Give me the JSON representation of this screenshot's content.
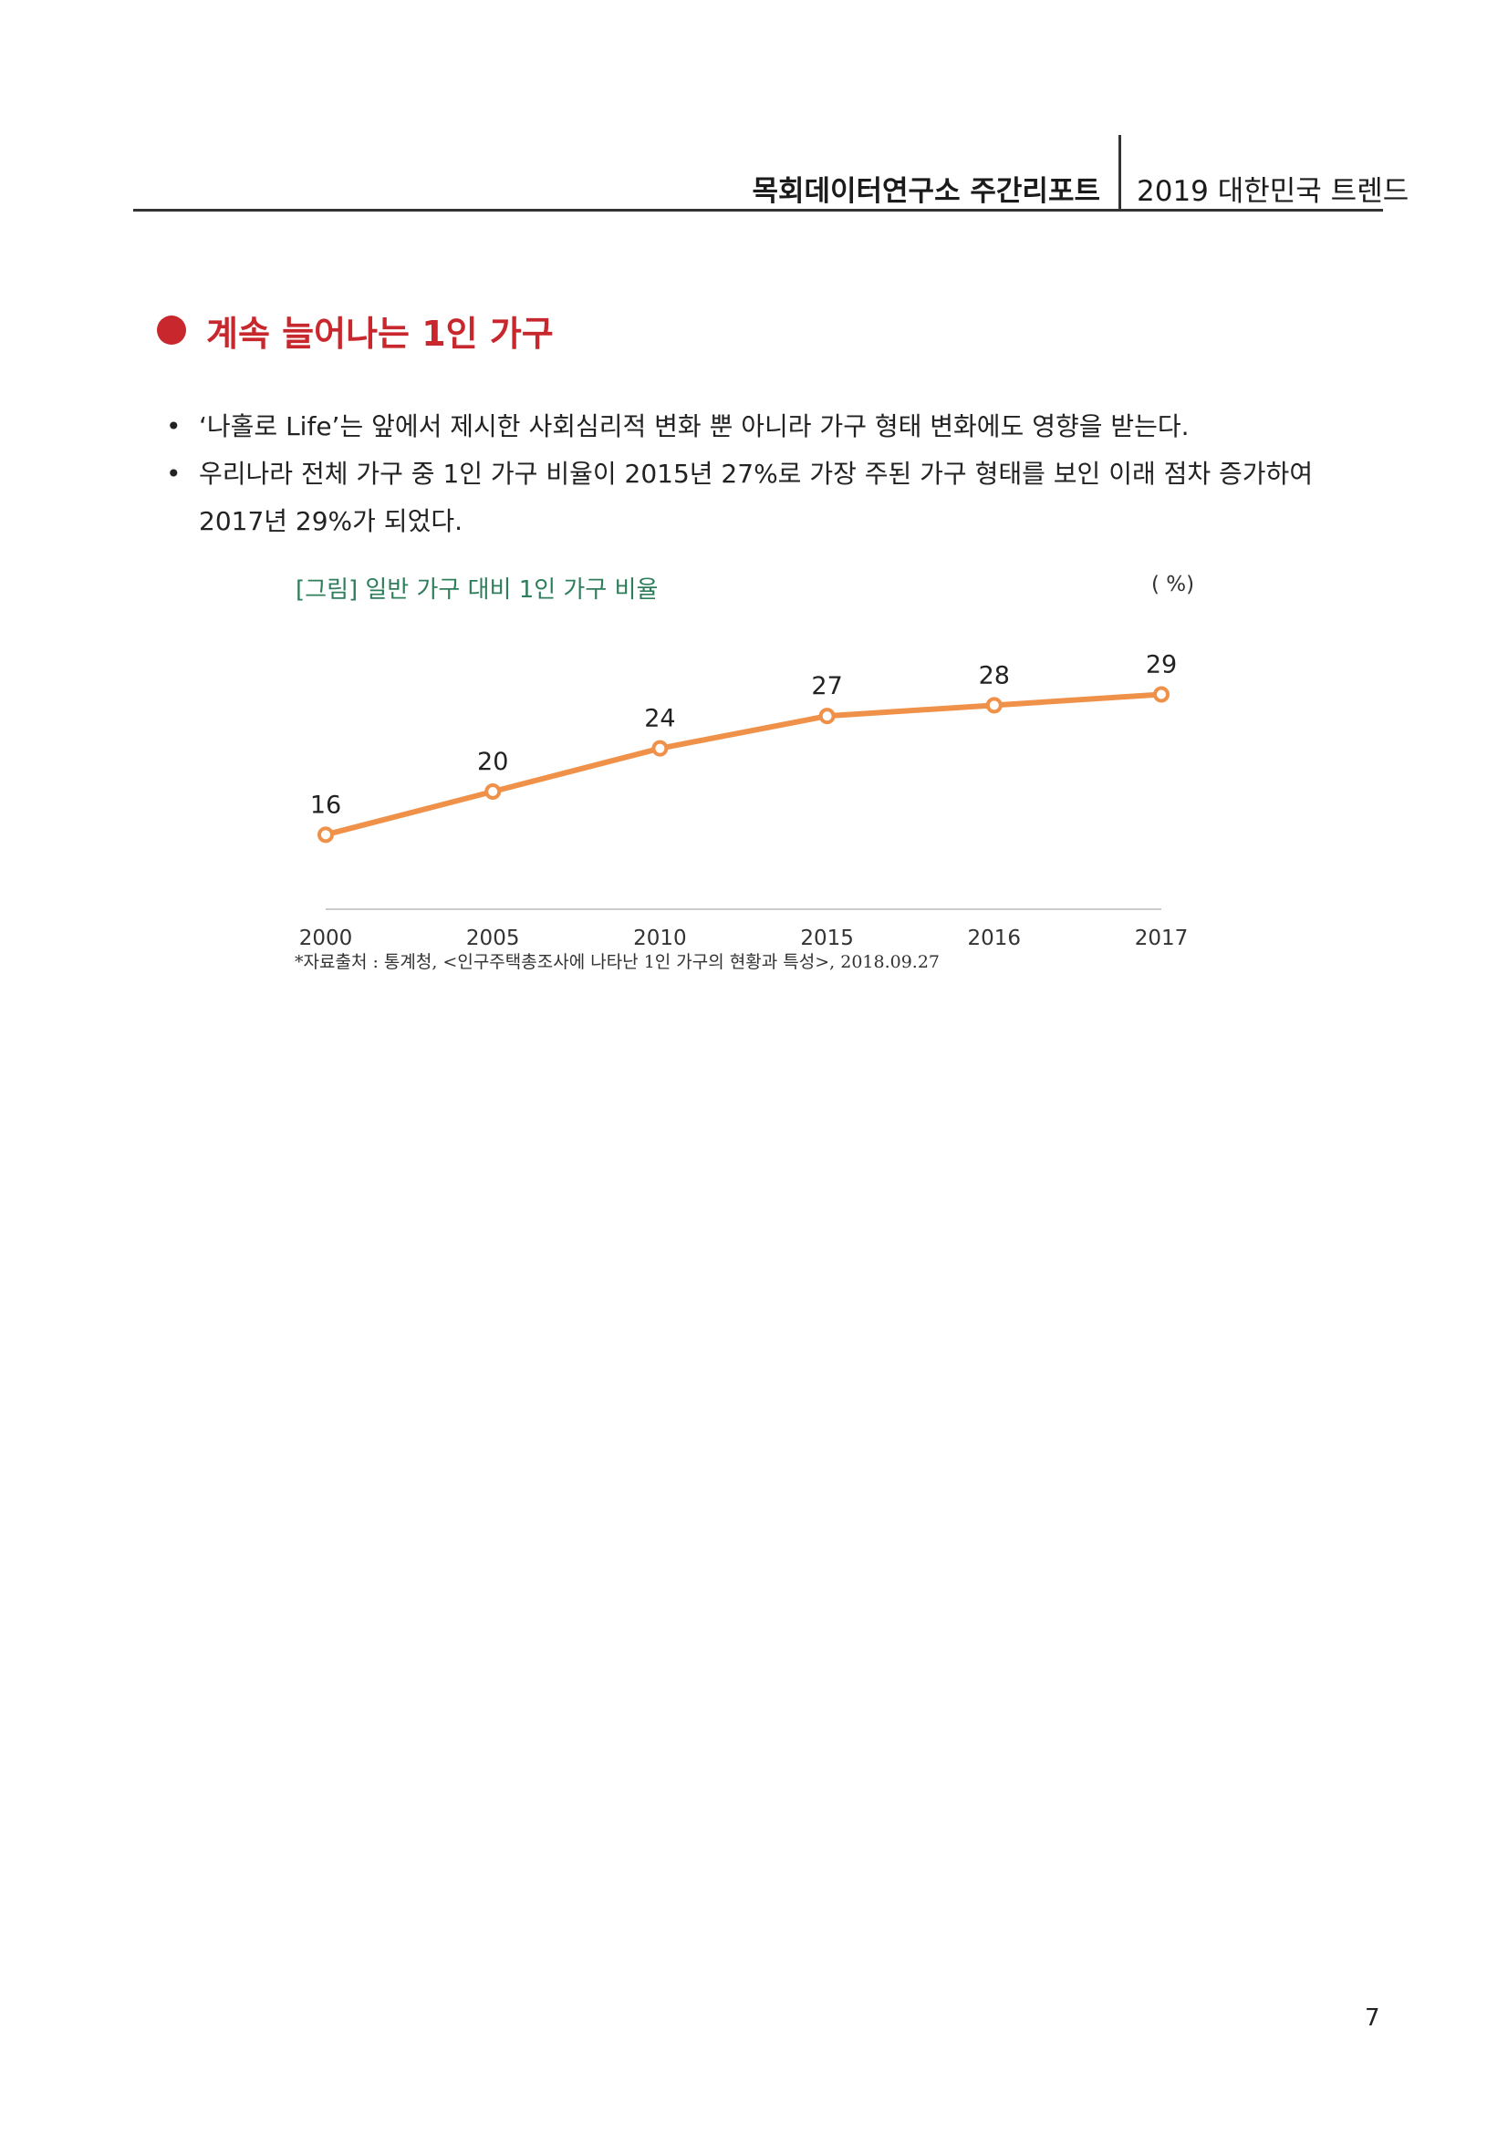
{
  "header": {
    "org": "목회데이터연구소 주간리포트",
    "series": "2019 대한민국 트렌드"
  },
  "section": {
    "title": "계속 늘어나는 1인 가구"
  },
  "bullets": [
    {
      "mark": "•",
      "lines": [
        "‘나홀로 Life’는 앞에서 제시한 사회심리적 변화 뿐 아니라 가구 형태 변화에도 영향을 받는다."
      ]
    },
    {
      "mark": "•",
      "lines": [
        "우리나라 전체 가구 중 1인 가구 비율이 2015년 27%로 가장 주된 가구 형태를 보인 이래 점차 증가하여",
        "2017년 29%가 되었다."
      ]
    }
  ],
  "figure": {
    "caption": "[그림] 일반 가구 대비 1인 가구 비율",
    "unit": "( %)",
    "source": "*자료출처 : 통계청, <인구주택총조사에 나타난 1인 가구의 현황과 특성>, 2018.09.27"
  },
  "chart_data": {
    "type": "line",
    "categories": [
      "2000",
      "2005",
      "2010",
      "2015",
      "2016",
      "2017"
    ],
    "series": [
      {
        "values": [
          16,
          20,
          24,
          27,
          28,
          29
        ],
        "color": "#f0914a"
      }
    ],
    "data_labels": true,
    "ylim": [
      8,
      32
    ],
    "grid": false,
    "unit": "%",
    "axis_color": "#cccccc"
  },
  "page": {
    "number": "7"
  }
}
